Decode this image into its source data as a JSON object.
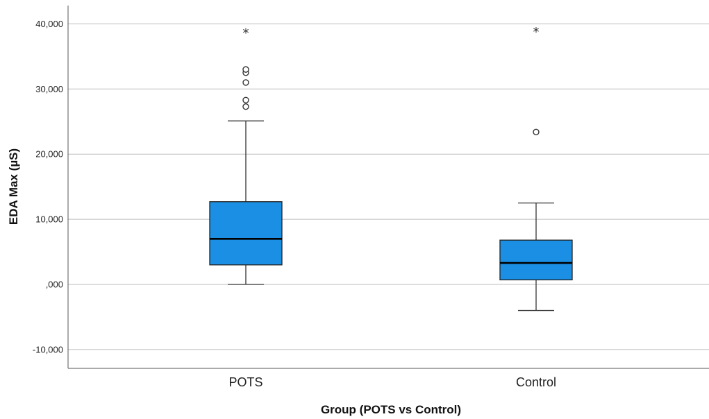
{
  "chart_data": {
    "type": "boxplot",
    "xlabel": "Group (POTS vs Control)",
    "ylabel": "EDA Max (µS)",
    "ylim": [
      -12800,
      43000
    ],
    "yticks": [
      {
        "value": -10000,
        "label": "-10,000"
      },
      {
        "value": 0,
        "label": ",000"
      },
      {
        "value": 10000,
        "label": "10,000"
      },
      {
        "value": 20000,
        "label": "20,000"
      },
      {
        "value": 30000,
        "label": "30,000"
      },
      {
        "value": 40000,
        "label": "40,000"
      }
    ],
    "grid": true,
    "box_color": "#1a8fe3",
    "categories": [
      "POTS",
      "Control"
    ],
    "boxes": [
      {
        "category": "POTS",
        "whisker_low": 0,
        "q1": 3000,
        "median": 7000,
        "q3": 12700,
        "whisker_high": 25100,
        "outliers": [
          27300,
          28300,
          31000,
          32500,
          33000
        ],
        "extremes": [
          38900
        ]
      },
      {
        "category": "Control",
        "whisker_low": -4000,
        "q1": 700,
        "median": 3300,
        "q3": 6800,
        "whisker_high": 12500,
        "outliers": [
          23400
        ],
        "extremes": [
          39100
        ]
      }
    ]
  }
}
